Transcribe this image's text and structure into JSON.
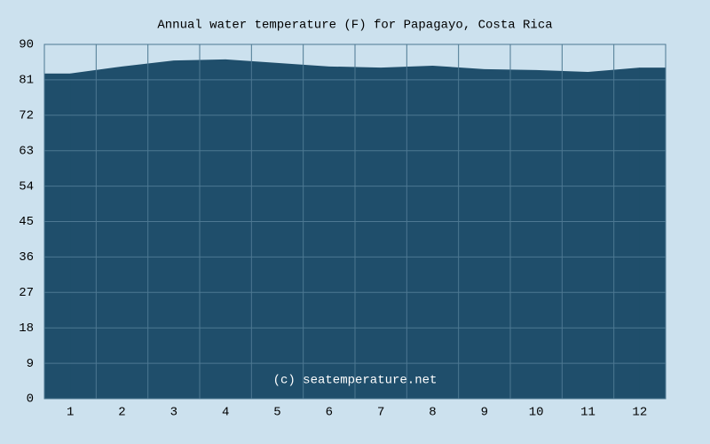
{
  "chart_data": {
    "type": "area",
    "title": "Annual water temperature (F) for Papagayo, Costa Rica",
    "annotation": "(c) seatemperature.net",
    "categories": [
      "1",
      "2",
      "3",
      "4",
      "5",
      "6",
      "7",
      "8",
      "9",
      "10",
      "11",
      "12"
    ],
    "values": [
      82.6,
      84.4,
      85.9,
      86.2,
      85.3,
      84.4,
      84.1,
      84.6,
      83.7,
      83.5,
      83.0,
      84.1
    ],
    "color": "#1f4e6b",
    "ylim": [
      0,
      90
    ],
    "yticks": [
      0,
      9,
      18,
      27,
      36,
      45,
      54,
      63,
      72,
      81,
      90
    ],
    "grid": true
  }
}
